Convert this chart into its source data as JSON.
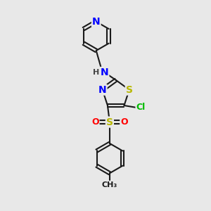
{
  "bg_color": "#e8e8e8",
  "bond_color": "#1a1a1a",
  "bond_width": 1.5,
  "atom_colors": {
    "N": "#0000ff",
    "S": "#b8b800",
    "O": "#ff0000",
    "Cl": "#00bb00",
    "NH": "#0000ff",
    "C": "#1a1a1a"
  },
  "font_size": 9
}
